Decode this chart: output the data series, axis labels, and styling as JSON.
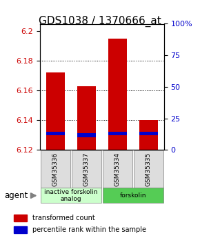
{
  "title": "GDS1038 / 1370666_at",
  "samples": [
    "GSM35336",
    "GSM35337",
    "GSM35334",
    "GSM35335"
  ],
  "red_values": [
    6.172,
    6.163,
    6.195,
    6.14
  ],
  "blue_values": [
    6.131,
    6.13,
    6.131,
    6.131
  ],
  "bar_bottom": 6.12,
  "ylim_min": 6.12,
  "ylim_max": 6.205,
  "yticks_left": [
    6.12,
    6.14,
    6.16,
    6.18,
    6.2
  ],
  "yticks_right": [
    0,
    25,
    50,
    75,
    100
  ],
  "yticks_right_labels": [
    "0",
    "25",
    "50",
    "75",
    "100%"
  ],
  "groups": [
    {
      "label": "inactive forskolin\nanalog",
      "start": 0,
      "end": 2,
      "color": "#ccffcc"
    },
    {
      "label": "forskolin",
      "start": 2,
      "end": 4,
      "color": "#55cc55"
    }
  ],
  "bar_width": 0.6,
  "red_color": "#cc0000",
  "blue_color": "#0000cc",
  "left_axis_color": "#cc0000",
  "right_axis_color": "#0000cc",
  "title_fontsize": 11,
  "tick_fontsize": 8,
  "agent_label": "agent",
  "legend_red": "transformed count",
  "legend_blue": "percentile rank within the sample"
}
